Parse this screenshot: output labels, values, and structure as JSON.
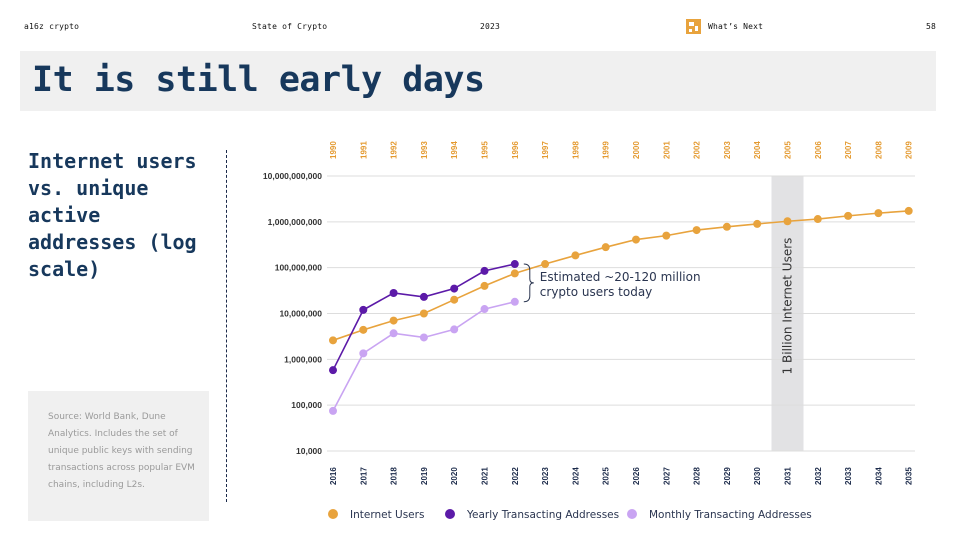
{
  "header": {
    "brand": "a16z crypto",
    "report": "State of Crypto",
    "year": "2023",
    "section": "What’s Next",
    "page_number": "58",
    "accent_color": "#e8a33d"
  },
  "title": "It is still early days",
  "subtitle": "Internet users vs. unique active addresses (log scale)",
  "source": "Source: World Bank, Dune Analytics. Includes the set of unique public keys with sending transactions across popular EVM chains, including L2s.",
  "chart_data": {
    "type": "line",
    "scale": "log",
    "y_ticks": [
      10000,
      100000,
      1000000,
      10000000,
      100000000,
      1000000000,
      10000000000
    ],
    "y_tick_labels": [
      "10,000",
      "100,000",
      "1,000,000",
      "10,000,000",
      "100,000,000",
      "1,000,000,000",
      "10,000,000,000"
    ],
    "ylim": [
      10000,
      10000000000
    ],
    "x_bottom": [
      "2016",
      "2017",
      "2018",
      "2019",
      "2020",
      "2021",
      "2022",
      "2023",
      "2024",
      "2025",
      "2026",
      "2027",
      "2028",
      "2029",
      "2030",
      "2031",
      "2032",
      "2033",
      "2034",
      "2035"
    ],
    "x_top": [
      "1990",
      "1991",
      "1992",
      "1993",
      "1994",
      "1995",
      "1996",
      "1997",
      "1998",
      "1999",
      "2000",
      "2001",
      "2002",
      "2003",
      "2004",
      "2005",
      "2006",
      "2007",
      "2008",
      "2009"
    ],
    "highlight_index": 15,
    "highlight_label": "1 Billion Internet Users",
    "annotation": [
      "Estimated ~20-120 million",
      "crypto users today"
    ],
    "series": [
      {
        "name": "Internet Users",
        "color": "#e8a33d",
        "values": [
          2600000,
          4400000,
          7000000,
          10000000,
          20000000,
          40000000,
          75000000,
          120000000,
          185000000,
          280000000,
          410000000,
          500000000,
          660000000,
          780000000,
          900000000,
          1030000000,
          1150000000,
          1350000000,
          1550000000,
          1730000000
        ]
      },
      {
        "name": "Yearly Transacting Addresses",
        "color": "#5c1aa8",
        "values": [
          580000,
          12000000,
          28000000,
          23000000,
          35000000,
          85000000,
          120000000
        ]
      },
      {
        "name": "Monthly Transacting Addresses",
        "color": "#c9a4f2",
        "values": [
          75000,
          1350000,
          3700000,
          3000000,
          4500000,
          12500000,
          18000000
        ]
      }
    ]
  }
}
